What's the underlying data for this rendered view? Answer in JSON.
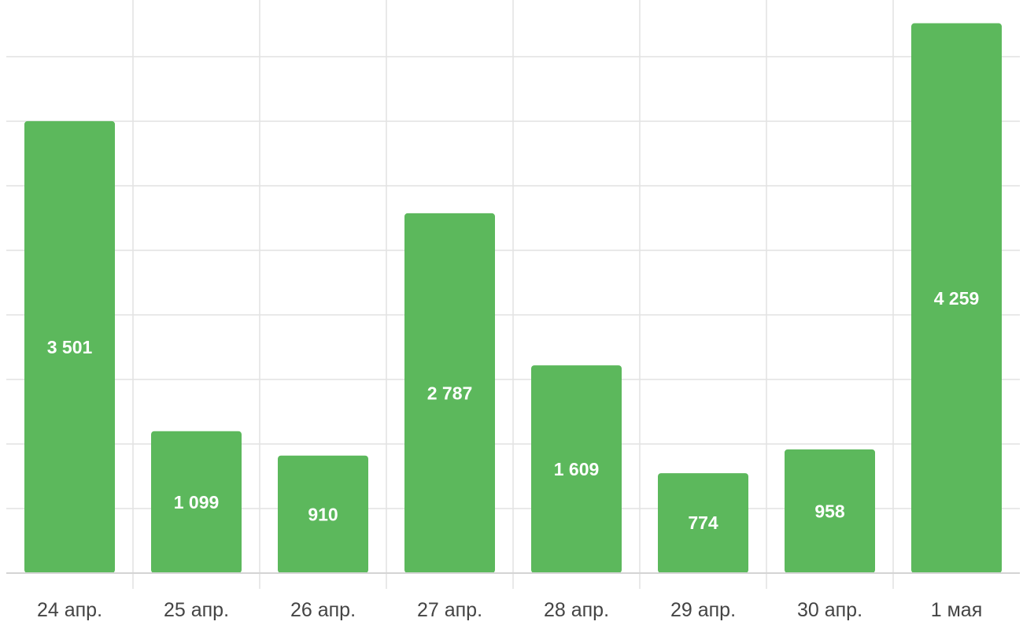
{
  "chart_data": {
    "type": "bar",
    "categories": [
      "24 апр.",
      "25 апр.",
      "26 апр.",
      "27 апр.",
      "28 апр.",
      "29 апр.",
      "30 апр.",
      "1 мая"
    ],
    "values": [
      3501,
      1099,
      910,
      2787,
      1609,
      774,
      958,
      4259
    ],
    "data_labels": [
      "3 501",
      "1 099",
      "910",
      "2 787",
      "1 609",
      "774",
      "958",
      "4 259"
    ],
    "title": "",
    "xlabel": "",
    "ylabel": "",
    "ylim": [
      0,
      4500
    ],
    "grid": true,
    "bar_color": "#5cb85c"
  }
}
